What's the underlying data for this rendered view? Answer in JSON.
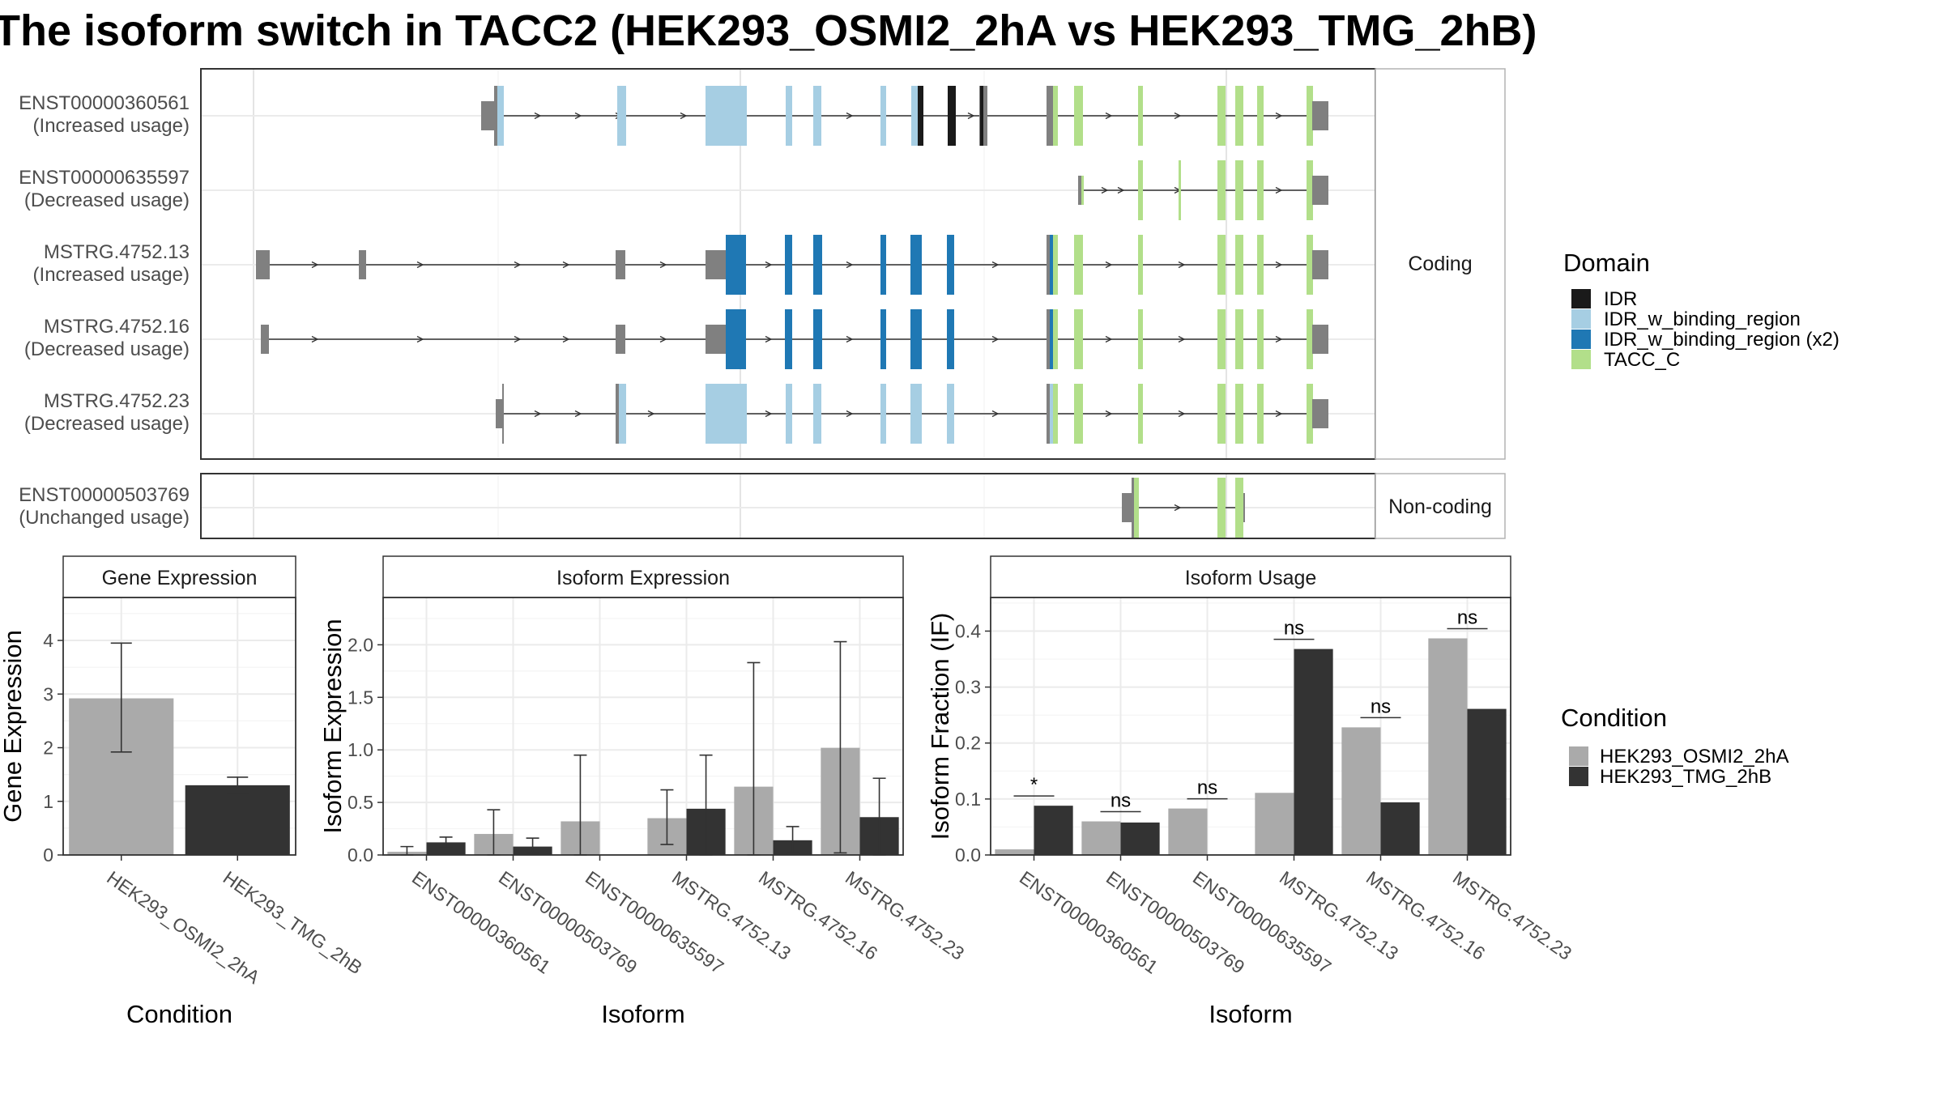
{
  "title": "The isoform switch in TACC2 (HEK293_OSMI2_2hA vs HEK293_TMG_2hB)",
  "colors": {
    "IDR": "#1a1a1a",
    "IDR_w_binding_region": "#a6cee3",
    "IDR_w_binding_region (x2)": "#1f78b4",
    "TACC_C": "#b2df8a",
    "utr": "#808080",
    "cond1": "#aaaaaa",
    "cond2": "#333333",
    "frame": "#333333",
    "strip": "#b3b3b3",
    "grid": "#ebebeb"
  },
  "transcripts": {
    "coding_strip": "Coding",
    "noncoding_strip": "Non-coding",
    "coding": [
      {
        "id": "ENST00000360561",
        "usage": "(Increased usage)"
      },
      {
        "id": "ENST00000635597",
        "usage": "(Decreased usage)"
      },
      {
        "id": "MSTRG.4752.13",
        "usage": "(Increased usage)"
      },
      {
        "id": "MSTRG.4752.16",
        "usage": "(Decreased usage)"
      },
      {
        "id": "MSTRG.4752.23",
        "usage": "(Decreased usage)"
      }
    ],
    "noncoding": [
      {
        "id": "ENST00000503769",
        "usage": "(Unchanged usage)"
      }
    ]
  },
  "domain_legend": {
    "title": "Domain",
    "items": [
      {
        "label": "IDR",
        "key": "IDR"
      },
      {
        "label": "IDR_w_binding_region",
        "key": "IDR_w_binding_region"
      },
      {
        "label": "IDR_w_binding_region (x2)",
        "key": "IDR_w_binding_region (x2)"
      },
      {
        "label": "TACC_C",
        "key": "TACC_C"
      }
    ]
  },
  "condition_legend": {
    "title": "Condition",
    "items": [
      "HEK293_OSMI2_2hA",
      "HEK293_TMG_2hB"
    ]
  },
  "chart_data": [
    {
      "type": "bar",
      "title": "Gene Expression",
      "xlabel": "Condition",
      "ylabel": "Gene Expression",
      "categories": [
        "HEK293_OSMI2_2hA",
        "HEK293_TMG_2hB"
      ],
      "values": [
        2.92,
        1.3
      ],
      "error_low": [
        1.92,
        1.15
      ],
      "error_high": [
        3.95,
        1.45
      ],
      "ylim": [
        0,
        4.8
      ],
      "yticks": [
        0,
        1,
        2,
        3,
        4
      ],
      "ytick_labels": [
        "0",
        "1",
        "2",
        "3",
        "4"
      ]
    },
    {
      "type": "bar",
      "title": "Isoform Expression",
      "xlabel": "Isoform",
      "ylabel": "Isoform Expression",
      "categories": [
        "ENST00000360561",
        "ENST00000503769",
        "ENST00000635597",
        "MSTRG.4752.13",
        "MSTRG.4752.16",
        "MSTRG.4752.23"
      ],
      "series": [
        {
          "name": "HEK293_OSMI2_2hA",
          "values": [
            0.03,
            0.2,
            0.32,
            0.35,
            0.65,
            1.02
          ],
          "error_low": [
            0.0,
            0.0,
            0.0,
            0.1,
            0.0,
            0.02
          ],
          "error_high": [
            0.08,
            0.43,
            0.95,
            0.62,
            1.83,
            2.03
          ]
        },
        {
          "name": "HEK293_TMG_2hB",
          "values": [
            0.12,
            0.08,
            0.0,
            0.44,
            0.14,
            0.36
          ],
          "error_low": [
            0.07,
            0.02,
            0.0,
            0.0,
            0.01,
            0.0
          ],
          "error_high": [
            0.17,
            0.16,
            0.0,
            0.95,
            0.27,
            0.73
          ]
        }
      ],
      "ylim": [
        0,
        2.45
      ],
      "yticks": [
        0,
        0.5,
        1.0,
        1.5,
        2.0
      ],
      "ytick_labels": [
        "0.0",
        "0.5",
        "1.0",
        "1.5",
        "2.0"
      ]
    },
    {
      "type": "bar",
      "title": "Isoform Usage",
      "xlabel": "Isoform",
      "ylabel": "Isoform Fraction (IF)",
      "categories": [
        "ENST00000360561",
        "ENST00000503769",
        "ENST00000635597",
        "MSTRG.4752.13",
        "MSTRG.4752.16",
        "MSTRG.4752.23"
      ],
      "series": [
        {
          "name": "HEK293_OSMI2_2hA",
          "values": [
            0.01,
            0.06,
            0.083,
            0.111,
            0.228,
            0.387
          ]
        },
        {
          "name": "HEK293_TMG_2hB",
          "values": [
            0.088,
            0.058,
            0.0,
            0.368,
            0.094,
            0.261
          ]
        }
      ],
      "significance": [
        "*",
        "ns",
        "ns",
        "ns",
        "ns",
        "ns"
      ],
      "ylim": [
        0,
        0.46
      ],
      "yticks": [
        0,
        0.1,
        0.2,
        0.3,
        0.4
      ],
      "ytick_labels": [
        "0.0",
        "0.1",
        "0.2",
        "0.3",
        "0.4"
      ]
    }
  ]
}
